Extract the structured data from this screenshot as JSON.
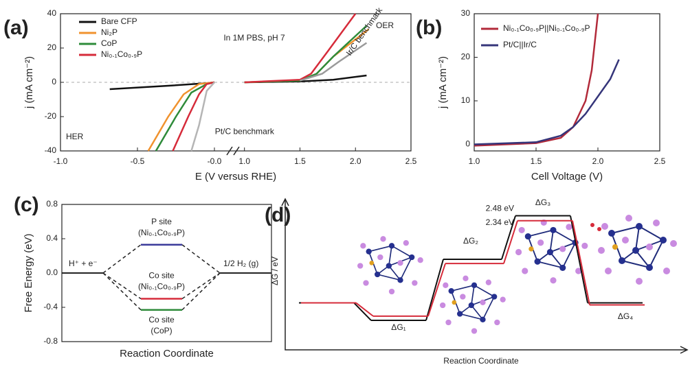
{
  "chart_data": [
    {
      "type": "line",
      "panel_label": "(a)",
      "title": "In 1M PBS, pH 7",
      "x_label": "E (V versus RHE)",
      "y_label": "j (mA cm⁻²)",
      "annotations": [
        "OER",
        "HER"
      ],
      "xlim": [
        -1.0,
        2.5
      ],
      "x_break": [
        0.125,
        0.94
      ],
      "xticks": [
        {
          "value": -1,
          "label": "-1.0"
        },
        -0.5,
        {
          "value": 0,
          "label": "-0.0"
        },
        {
          "value": 1,
          "label": "1.0"
        },
        1.5,
        {
          "value": 2,
          "label": "2.0"
        },
        2.5
      ],
      "ylim": [
        -40,
        40
      ],
      "yticks": [
        -40,
        -20,
        0,
        20,
        40
      ],
      "series": [
        {
          "name": "Bare CFP",
          "color": "#111111",
          "in_legend": true,
          "x": [
            -0.68,
            -0.3,
            -0.05,
            0,
            null,
            1.0,
            1.5,
            1.8,
            2.1
          ],
          "values": [
            -4,
            -2,
            -0.5,
            0,
            null,
            0,
            0.5,
            1.5,
            4
          ]
        },
        {
          "name": "Ni₂P",
          "color": "#f0922e",
          "in_legend": true,
          "x": [
            -0.43,
            -0.3,
            -0.2,
            -0.1,
            0,
            null,
            1.0,
            1.5,
            1.65,
            1.8,
            2.12
          ],
          "values": [
            -40,
            -20,
            -7,
            -1,
            0,
            null,
            0,
            1,
            5,
            15,
            31
          ]
        },
        {
          "name": "CoP",
          "color": "#2e8b3a",
          "in_legend": true,
          "x": [
            -0.38,
            -0.25,
            -0.15,
            -0.05,
            0,
            null,
            1.0,
            1.5,
            1.65,
            1.8,
            2.1
          ],
          "values": [
            -40,
            -20,
            -6,
            -1,
            0,
            null,
            0,
            1,
            5,
            15,
            33
          ]
        },
        {
          "name": "Ni₀.₁Co₀.₉P",
          "color": "#d62b3a",
          "in_legend": true,
          "x": [
            -0.27,
            -0.17,
            -0.1,
            -0.05,
            0,
            null,
            1.0,
            1.5,
            1.6,
            1.75,
            2.0
          ],
          "values": [
            -40,
            -20,
            -7,
            -1,
            0,
            null,
            0,
            1.5,
            5,
            18,
            40
          ]
        },
        {
          "name": "Pt/C benchmark",
          "color": "#b5b5b5",
          "in_legend": false,
          "x": [
            -0.15,
            -0.1,
            -0.05,
            0
          ],
          "values": [
            -40,
            -25,
            -5,
            0
          ]
        },
        {
          "name": "Ir/C benchmark",
          "color": "#9a9a9a",
          "in_legend": false,
          "x": [
            1.5,
            1.7,
            1.85,
            2.1
          ],
          "values": [
            1,
            5,
            12,
            23
          ]
        }
      ]
    },
    {
      "type": "line",
      "panel_label": "(b)",
      "x_label": "Cell Voltage (V)",
      "y_label": "j (mA cm⁻²)",
      "xlim": [
        1.0,
        2.5
      ],
      "xticks": [
        {
          "value": 1,
          "label": "1.0"
        },
        1.5,
        {
          "value": 2,
          "label": "2.0"
        },
        2.5
      ],
      "ylim": [
        -1.5,
        30
      ],
      "yticks": [
        0,
        10,
        20,
        30
      ],
      "series": [
        {
          "name": "Ni₀.₁Co₀.₉P||Ni₀.₁Co₀.₉P",
          "color": "#b22a3a",
          "in_legend": true,
          "x": [
            1.0,
            1.5,
            1.7,
            1.8,
            1.9,
            1.95,
            2.0
          ],
          "values": [
            -0.3,
            0.3,
            1.5,
            4,
            10,
            17,
            30
          ]
        },
        {
          "name": "Pt/C||Ir/C",
          "color": "#35357a",
          "in_legend": true,
          "x": [
            1.0,
            1.5,
            1.7,
            1.8,
            1.9,
            1.95,
            2.0,
            2.1,
            2.17
          ],
          "values": [
            0,
            0.5,
            2,
            4,
            7,
            9,
            11,
            15,
            19.5
          ]
        }
      ]
    },
    {
      "type": "energy_levels",
      "panel_label": "(c)",
      "x_label": "Reaction Coordinate",
      "y_label": "Free Energy (eV)",
      "ylim": [
        -0.8,
        0.8
      ],
      "yticks": [
        -0.8,
        -0.4,
        {
          "value": 0,
          "label": "0.0"
        },
        0.4,
        0.8
      ],
      "start_label": "H⁺ + e⁻",
      "start_value": 0,
      "end_label": "1/2 H₂ (g)",
      "end_value": 0,
      "series": [
        {
          "name": "P site",
          "material": "(Ni₀.₁Co₀.₉P)",
          "color": "#3a3a9a",
          "value": 0.33
        },
        {
          "name": "Co site",
          "material": "(Ni₀.₁Co₀.₉P)",
          "color": "#d62b3a",
          "value": -0.3
        },
        {
          "name": "Co site",
          "material": "(CoP)",
          "color": "#2e8b3a",
          "value": -0.43
        }
      ]
    },
    {
      "type": "energy_steps",
      "panel_label": "(d)",
      "x_label": "Reaction Coordinate",
      "y_label": "ΔG / eV",
      "ylim": [
        -1.34,
        2.96
      ],
      "step_labels": [
        "ΔG₁",
        "ΔG₂",
        "ΔG₃",
        "ΔG₄"
      ],
      "series": [
        {
          "color": "#111111",
          "values": [
            0,
            -0.5,
            1.24,
            2.48,
            0
          ],
          "value_labels": [
            null,
            null,
            null,
            "2.48 eV",
            null
          ]
        },
        {
          "color": "#d62b3a",
          "values": [
            0,
            -0.38,
            1.12,
            2.34,
            -0.06
          ],
          "value_labels": [
            null,
            null,
            null,
            "2.34 eV",
            null
          ]
        }
      ]
    }
  ]
}
